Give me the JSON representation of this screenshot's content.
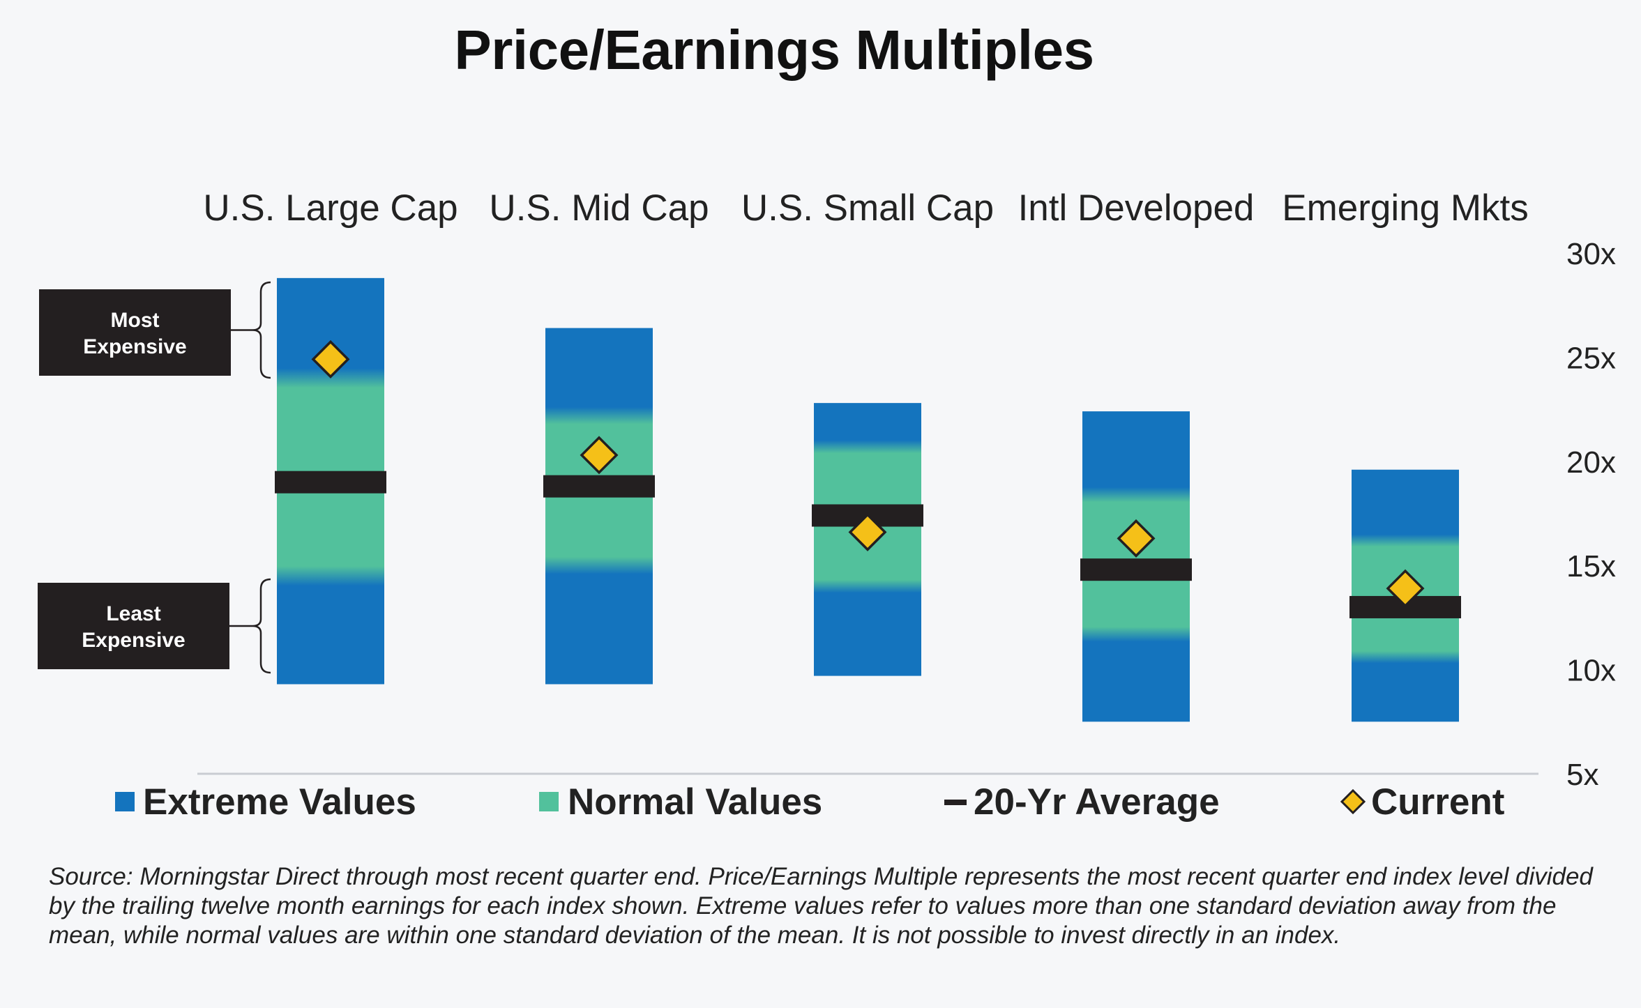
{
  "colors": {
    "extreme": "#1474be",
    "normal": "#52c19c",
    "average": "#231f20",
    "current": "#f5c018",
    "callout_bg": "#231f20"
  },
  "chart_data": {
    "type": "bar",
    "title": "Price/Earnings Multiples",
    "categories": [
      "U.S. Large Cap",
      "U.S. Mid Cap",
      "U.S. Small Cap",
      "Intl Developed",
      "Emerging Mkts"
    ],
    "ylim": [
      5,
      30
    ],
    "yticks": [
      "30x",
      "25x",
      "20x",
      "15x",
      "10x",
      "5x"
    ],
    "ytick_values": [
      30,
      25,
      20,
      15,
      10,
      5
    ],
    "series": [
      {
        "name": "Extreme Values",
        "low": [
          9.3,
          9.3,
          9.7,
          7.5,
          7.5
        ],
        "high": [
          28.8,
          26.4,
          22.8,
          22.4,
          19.6
        ]
      },
      {
        "name": "Normal Values",
        "low": [
          14.5,
          15.0,
          14.0,
          11.7,
          10.6
        ],
        "high": [
          24.0,
          22.2,
          20.7,
          18.4,
          16.2
        ]
      },
      {
        "name": "20-Yr Average",
        "values": [
          19.0,
          18.8,
          17.4,
          14.8,
          13.0
        ]
      },
      {
        "name": "Current",
        "values": [
          24.9,
          20.3,
          16.6,
          16.3,
          13.9
        ]
      }
    ],
    "legend_position": "bottom",
    "grid": false
  },
  "legend": {
    "extreme": "Extreme Values",
    "normal": "Normal Values",
    "average": "20-Yr Average",
    "current": "Current"
  },
  "callouts": {
    "most": [
      "Most",
      "Expensive"
    ],
    "least": [
      "Least",
      "Expensive"
    ]
  },
  "source_note": "Source: Morningstar Direct through most recent quarter end. Price/Earnings Multiple represents the most recent quarter end index level divided by the trailing twelve month earnings for each index shown.  Extreme values refer to values more than one standard deviation away from the mean, while normal values are within one standard deviation of the mean.  It is not possible to invest directly in an index."
}
